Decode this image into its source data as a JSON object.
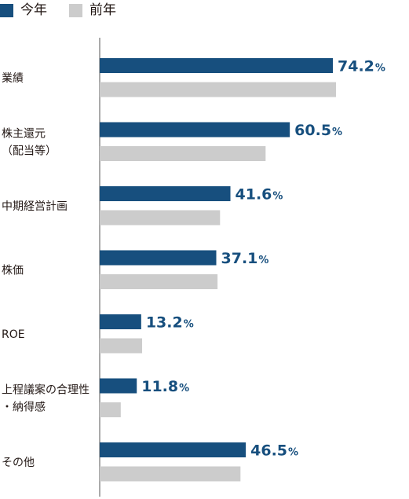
{
  "legend": [
    {
      "label": "今年",
      "color": "#174f7e"
    },
    {
      "label": "前年",
      "color": "#cccccc"
    }
  ],
  "chart_data": {
    "type": "bar",
    "orientation": "horizontal",
    "categories": [
      [
        "業績"
      ],
      [
        "株主還元",
        "（配当等）"
      ],
      [
        "中期経営計画"
      ],
      [
        "株価"
      ],
      [
        "ROE"
      ],
      [
        "上程議案の合理性",
        "・納得感"
      ],
      [
        "その他"
      ]
    ],
    "series": [
      {
        "name": "今年",
        "color": "#174f7e",
        "values": [
          74.2,
          60.5,
          41.6,
          37.1,
          13.2,
          11.8,
          46.5
        ]
      },
      {
        "name": "前年",
        "color": "#cccccc",
        "values": [
          75.2,
          52.8,
          38.3,
          37.5,
          13.5,
          6.7,
          44.8
        ]
      }
    ],
    "value_suffix": "%",
    "xlim": [
      0,
      80
    ],
    "grid": false,
    "legend_position": "top-left"
  }
}
